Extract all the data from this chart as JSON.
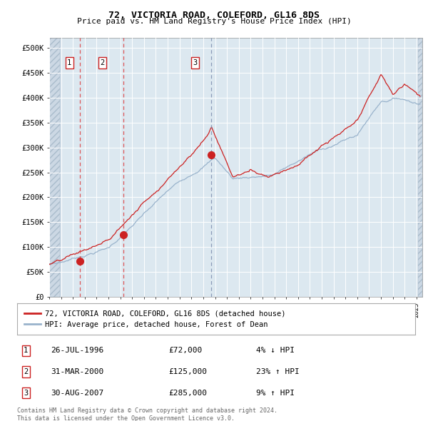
{
  "title": "72, VICTORIA ROAD, COLEFORD, GL16 8DS",
  "subtitle": "Price paid vs. HM Land Registry's House Price Index (HPI)",
  "ylim": [
    0,
    520000
  ],
  "yticks": [
    0,
    50000,
    100000,
    150000,
    200000,
    250000,
    300000,
    350000,
    400000,
    450000,
    500000
  ],
  "ytick_labels": [
    "£0",
    "£50K",
    "£100K",
    "£150K",
    "£200K",
    "£250K",
    "£300K",
    "£350K",
    "£400K",
    "£450K",
    "£500K"
  ],
  "xlim_start": 1994.0,
  "xlim_end": 2025.5,
  "xticks": [
    1994,
    1995,
    1996,
    1997,
    1998,
    1999,
    2000,
    2001,
    2002,
    2003,
    2004,
    2005,
    2006,
    2007,
    2008,
    2009,
    2010,
    2011,
    2012,
    2013,
    2014,
    2015,
    2016,
    2017,
    2018,
    2019,
    2020,
    2021,
    2022,
    2023,
    2024,
    2025
  ],
  "sale_dates": [
    1996.57,
    2000.25,
    2007.66
  ],
  "sale_prices": [
    72000,
    125000,
    285000
  ],
  "sale_labels": [
    "1",
    "2",
    "3"
  ],
  "hpi_color": "#99b3cc",
  "price_color": "#cc2222",
  "plot_bg_color": "#dce8f0",
  "hatch_color": "#c0ccda",
  "legend_label_red": "72, VICTORIA ROAD, COLEFORD, GL16 8DS (detached house)",
  "legend_label_blue": "HPI: Average price, detached house, Forest of Dean",
  "table_entries": [
    {
      "num": "1",
      "date": "26-JUL-1996",
      "price": "£72,000",
      "hpi": "4% ↓ HPI"
    },
    {
      "num": "2",
      "date": "31-MAR-2000",
      "price": "£125,000",
      "hpi": "23% ↑ HPI"
    },
    {
      "num": "3",
      "date": "30-AUG-2007",
      "price": "£285,000",
      "hpi": "9% ↑ HPI"
    }
  ],
  "footnote": "Contains HM Land Registry data © Crown copyright and database right 2024.\nThis data is licensed under the Open Government Licence v3.0."
}
